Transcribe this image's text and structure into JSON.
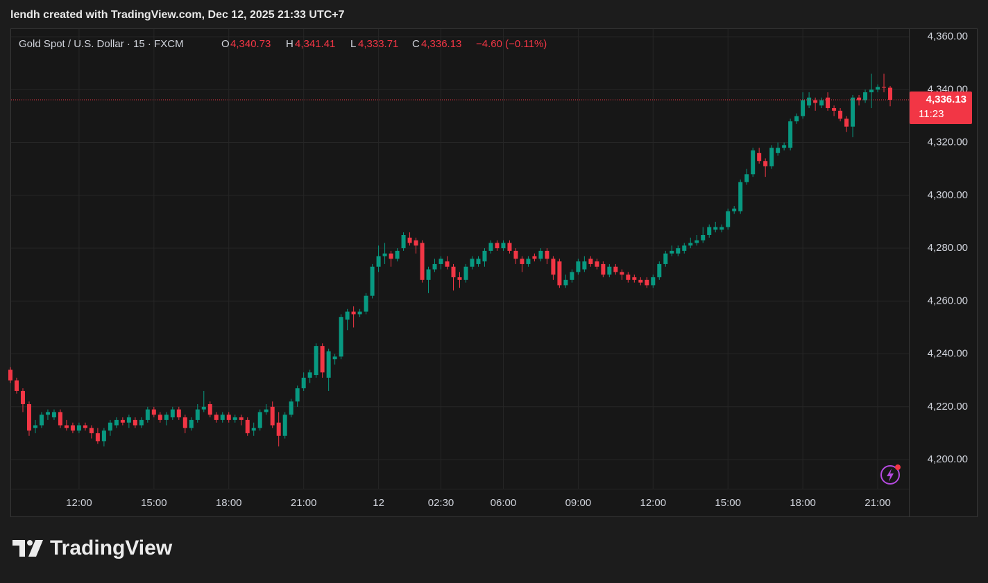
{
  "header": "lendh created with TradingView.com, Dec 12, 2025 21:33 UTC+7",
  "legend": {
    "symbol": "Gold Spot / U.S. Dollar · 15 · FXCM",
    "fields": [
      {
        "label": "O",
        "value": "4,340.73"
      },
      {
        "label": "H",
        "value": "4,341.41"
      },
      {
        "label": "L",
        "value": "4,333.71"
      },
      {
        "label": "C",
        "value": "4,336.13"
      }
    ],
    "change": "−4.60 (−0.11%)"
  },
  "logo": "TradingView",
  "chart_data": {
    "type": "candlestick",
    "up_color": "#089981",
    "down_color": "#f23645",
    "grid": true,
    "open": [
      4234,
      4230,
      4226,
      4221,
      4212,
      4213,
      4217,
      4216,
      4218,
      4213,
      4213,
      4211,
      4213,
      4212,
      4210,
      4207,
      4211,
      4213,
      4215,
      4214,
      4215,
      4213,
      4215,
      4219,
      4217,
      4215,
      4216,
      4219,
      4216,
      4212,
      4215,
      4219,
      4221,
      4217,
      4215,
      4217,
      4215,
      4216,
      4215,
      4211,
      4212,
      4218,
      4220,
      4214,
      4209,
      4217,
      4222,
      4227,
      4231,
      4232,
      4243,
      4231,
      4238,
      4239,
      4253,
      4256,
      4255,
      4256,
      4262,
      4273,
      4277,
      4278,
      4276,
      4280,
      4284,
      4283,
      4282,
      4268,
      4272,
      4274,
      4275,
      4273,
      4269,
      4268,
      4273,
      4274,
      4275,
      4279,
      4282,
      4280,
      4282,
      4279,
      4276,
      4274,
      4277,
      4276,
      4279,
      4276,
      4275,
      4266,
      4268,
      4271,
      4272,
      4276,
      4275,
      4274,
      4270,
      4273,
      4271,
      4270,
      4269,
      4268,
      4268,
      4266,
      4269,
      4274,
      4278,
      4278,
      4279,
      4281,
      4282,
      4283,
      4285,
      4287,
      4287,
      4288,
      4294,
      4294,
      4305,
      4308,
      4316,
      4313,
      4311,
      4316,
      4318,
      4318,
      4328,
      4330,
      4334,
      4336,
      4334,
      4337,
      4333,
      4332,
      4329,
      4326,
      4337,
      4336,
      4339,
      4340,
      4341,
      4340.73
    ],
    "high": [
      4235,
      4231,
      4227,
      4222,
      4215,
      4218,
      4219,
      4219,
      4219,
      4215,
      4214,
      4214,
      4214,
      4213,
      4212,
      4212,
      4215,
      4216,
      4216,
      4217,
      4216,
      4216,
      4220,
      4220,
      4218,
      4218,
      4220,
      4220,
      4217,
      4216,
      4221,
      4226,
      4222,
      4218,
      4218,
      4218,
      4217,
      4217,
      4216,
      4214,
      4219,
      4221,
      4222,
      4218,
      4218,
      4223,
      4228,
      4233,
      4234,
      4244,
      4244,
      4242,
      4240,
      4255,
      4257,
      4258,
      4257,
      4263,
      4274,
      4281,
      4282,
      4279,
      4280,
      4286,
      4286,
      4284,
      4283,
      4273,
      4276,
      4277,
      4277,
      4274,
      4271,
      4274,
      4277,
      4277,
      4280,
      4283,
      4283,
      4283,
      4283,
      4280,
      4277,
      4277,
      4278,
      4280,
      4280,
      4277,
      4276,
      4270,
      4272,
      4276,
      4277,
      4277,
      4276,
      4275,
      4274,
      4274,
      4272,
      4271,
      4270,
      4269,
      4269,
      4270,
      4275,
      4279,
      4281,
      4281,
      4282,
      4284,
      4285,
      4288,
      4289,
      4290,
      4289,
      4295,
      4296,
      4306,
      4310,
      4318,
      4318,
      4314,
      4319,
      4320,
      4320,
      4329,
      4331,
      4339,
      4339,
      4337,
      4337,
      4339,
      4334,
      4333,
      4330,
      4338,
      4338,
      4340,
      4346,
      4342,
      4346,
      4341.41
    ],
    "low": [
      4229,
      4225,
      4218,
      4209,
      4210,
      4212,
      4215,
      4215,
      4212,
      4211,
      4210,
      4210,
      4211,
      4208,
      4206,
      4205,
      4209,
      4212,
      4213,
      4212,
      4212,
      4212,
      4214,
      4216,
      4214,
      4213,
      4215,
      4215,
      4210,
      4211,
      4214,
      4218,
      4216,
      4214,
      4214,
      4214,
      4214,
      4213,
      4209,
      4209,
      4211,
      4217,
      4212,
      4205,
      4208,
      4216,
      4220,
      4226,
      4229,
      4231,
      4231,
      4226,
      4236,
      4238,
      4249,
      4250,
      4254,
      4255,
      4261,
      4271,
      4274,
      4273,
      4275,
      4279,
      4281,
      4278,
      4267,
      4263,
      4271,
      4272,
      4272,
      4264,
      4265,
      4267,
      4272,
      4273,
      4273,
      4278,
      4279,
      4279,
      4278,
      4274,
      4271,
      4273,
      4275,
      4275,
      4274,
      4268,
      4265,
      4265,
      4267,
      4270,
      4271,
      4273,
      4272,
      4269,
      4269,
      4270,
      4268,
      4267,
      4267,
      4266,
      4265,
      4265,
      4268,
      4273,
      4277,
      4277,
      4278,
      4280,
      4281,
      4282,
      4284,
      4286,
      4286,
      4287,
      4293,
      4293,
      4304,
      4307,
      4312,
      4307,
      4310,
      4315,
      4317,
      4317,
      4327,
      4329,
      4333,
      4332,
      4333,
      4332,
      4330,
      4328,
      4324,
      4322,
      4334,
      4335,
      4333,
      4339,
      4339,
      4333.71
    ],
    "close": [
      4230,
      4226,
      4221,
      4211,
      4213,
      4217,
      4218,
      4218,
      4213,
      4212,
      4211,
      4213,
      4212,
      4210,
      4207,
      4211,
      4214,
      4215,
      4214,
      4216,
      4213,
      4215,
      4219,
      4217,
      4215,
      4217,
      4219,
      4216,
      4212,
      4215,
      4219,
      4220,
      4217,
      4215,
      4217,
      4215,
      4216,
      4215,
      4210,
      4212,
      4218,
      4219,
      4213,
      4209,
      4217,
      4222,
      4227,
      4231,
      4233,
      4243,
      4233,
      4241,
      4239,
      4254,
      4256,
      4255,
      4256,
      4262,
      4273,
      4277,
      4278,
      4276,
      4279,
      4285,
      4282,
      4281,
      4268,
      4272,
      4274,
      4276,
      4273,
      4269,
      4268,
      4273,
      4276,
      4276,
      4279,
      4282,
      4280,
      4282,
      4279,
      4276,
      4274,
      4276,
      4276,
      4279,
      4276,
      4270,
      4266,
      4268,
      4271,
      4275,
      4275,
      4274,
      4273,
      4270,
      4273,
      4271,
      4270,
      4268,
      4268,
      4267,
      4266,
      4269,
      4274,
      4278,
      4279,
      4280,
      4281,
      4282,
      4283,
      4285,
      4288,
      4288,
      4288,
      4294,
      4295,
      4305,
      4308,
      4317,
      4313,
      4311,
      4318,
      4318,
      4319,
      4328,
      4330,
      4336,
      4337,
      4335,
      4336,
      4333,
      4332,
      4329,
      4326,
      4337,
      4336,
      4339,
      4340,
      4341,
      4340.73,
      4336.13
    ],
    "xlim": [
      0,
      144
    ],
    "xticks": [
      {
        "value": 11,
        "label": "12:00"
      },
      {
        "value": 23,
        "label": "15:00"
      },
      {
        "value": 35,
        "label": "18:00"
      },
      {
        "value": 47,
        "label": "21:00"
      },
      {
        "value": 59,
        "label": "12"
      },
      {
        "value": 69,
        "label": "02:30"
      },
      {
        "value": 79,
        "label": "06:00"
      },
      {
        "value": 91,
        "label": "09:00"
      },
      {
        "value": 103,
        "label": "12:00"
      },
      {
        "value": 115,
        "label": "15:00"
      },
      {
        "value": 127,
        "label": "18:00"
      },
      {
        "value": 139,
        "label": "21:00"
      }
    ],
    "ylim": [
      4189,
      4362.9
    ],
    "yticks": [
      {
        "value": 4200,
        "label": "4,200.00"
      },
      {
        "value": 4220,
        "label": "4,220.00"
      },
      {
        "value": 4240,
        "label": "4,240.00"
      },
      {
        "value": 4260,
        "label": "4,260.00"
      },
      {
        "value": 4280,
        "label": "4,280.00"
      },
      {
        "value": 4300,
        "label": "4,300.00"
      },
      {
        "value": 4320,
        "label": "4,320.00"
      },
      {
        "value": 4340,
        "label": "4,340.00"
      },
      {
        "value": 4360,
        "label": "4,360.00"
      }
    ],
    "last_price": {
      "value": 4336.13,
      "label": "4,336.13",
      "countdown": "11:23"
    }
  }
}
